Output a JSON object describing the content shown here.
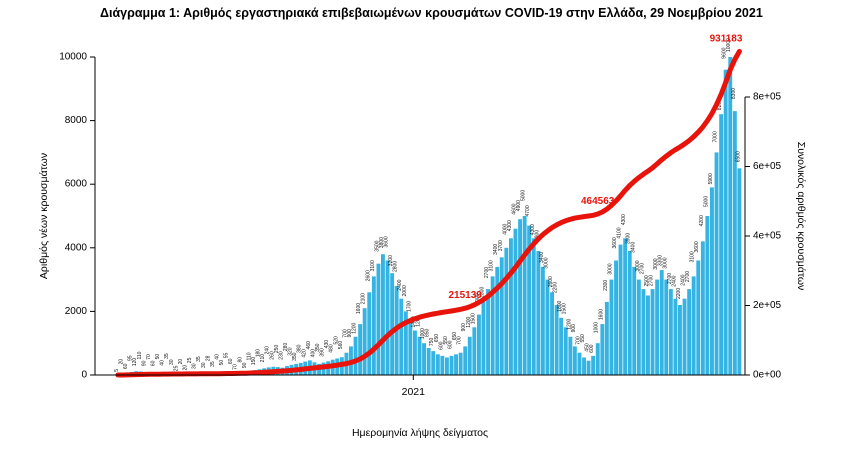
{
  "title": "Διάγραμμα 1: Αριθμός εργαστηριακά επιβεβαιωμένων κρουσμάτων COVID-19 στην Ελλάδα, 29 Νοεμβρίου 2021",
  "chart_data": {
    "type": "bar",
    "title": "Διάγραμμα 1: Αριθμός εργαστηριακά επιβεβαιωμένων κρουσμάτων COVID-19 στην Ελλάδα, 29 Νοεμβρίου 2021",
    "xlabel": "Ημερομηνία λήψης δείγματος",
    "x_ticks": [
      {
        "label": "2021",
        "pos": 0.475
      }
    ],
    "left_axis": {
      "label": "Αριθμός νέων κρουσμάτων",
      "ticks": [
        0,
        2000,
        4000,
        6000,
        8000,
        10000
      ],
      "max": 10000
    },
    "right_axis": {
      "label": "Συνολικός αριθμός κρουσμάτων",
      "ticks": [
        "0e+00",
        "2e+05",
        "4e+05",
        "6e+05",
        "8e+05"
      ],
      "tick_values": [
        0,
        200000,
        400000,
        600000,
        800000
      ],
      "max": 800000
    },
    "colors": {
      "bar": "#35b4e3",
      "line": "#e8140c",
      "annotation": "#e8140c",
      "tiny_labels": "#111111"
    },
    "series": [
      {
        "name": "daily-new-cases",
        "type": "bar",
        "color": "#35b4e3",
        "values": [
          5,
          20,
          60,
          95,
          120,
          110,
          90,
          70,
          60,
          50,
          40,
          35,
          30,
          25,
          20,
          20,
          25,
          30,
          35,
          30,
          28,
          35,
          40,
          50,
          55,
          60,
          70,
          80,
          90,
          110,
          150,
          180,
          210,
          240,
          260,
          250,
          230,
          280,
          320,
          350,
          380,
          420,
          460,
          400,
          350,
          390,
          430,
          480,
          520,
          560,
          700,
          900,
          1200,
          1600,
          2100,
          2600,
          3100,
          3500,
          3800,
          3600,
          3200,
          2800,
          2400,
          2000,
          1700,
          1400,
          1200,
          1000,
          850,
          750,
          650,
          600,
          550,
          600,
          650,
          700,
          900,
          1200,
          1500,
          1900,
          2300,
          2700,
          3100,
          3400,
          3700,
          4000,
          4300,
          4600,
          4900,
          5000,
          4700,
          4300,
          3900,
          3400,
          3000,
          2600,
          2200,
          1800,
          1500,
          1200,
          900,
          700,
          550,
          450,
          600,
          1000,
          1600,
          2300,
          3000,
          3600,
          4100,
          4300,
          3900,
          3400,
          3000,
          2700,
          2500,
          2700,
          3000,
          3300,
          3000,
          2700,
          2400,
          2200,
          2400,
          2700,
          3100,
          3600,
          4200,
          5000,
          5900,
          7000,
          8200,
          9600,
          10000,
          8300,
          6500
        ]
      },
      {
        "name": "cumulative-cases",
        "type": "line",
        "color": "#e8140c",
        "total": 931183
      }
    ],
    "annotations": [
      {
        "label": "215139",
        "at": 0.56
      },
      {
        "label": "464563",
        "at": 0.77
      },
      {
        "label": "931183",
        "at": 1.0
      }
    ],
    "legend": "none",
    "grid": false
  }
}
